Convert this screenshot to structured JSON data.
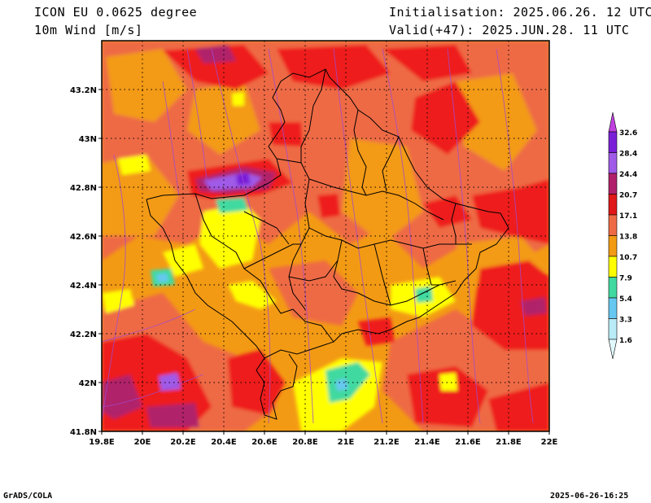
{
  "header": {
    "model": "ICON EU 0.0625 degree",
    "variable": "10m Wind [m/s]",
    "init": "Initialisation: 2025.06.26. 12 UTC",
    "valid": "Valid(+47): 2025.JUN.28. 11 UTC"
  },
  "axes": {
    "x_ticks": [
      "19.8E",
      "20E",
      "20.2E",
      "20.4E",
      "20.6E",
      "20.8E",
      "21E",
      "21.2E",
      "21.4E",
      "21.6E",
      "21.8E",
      "22E"
    ],
    "y_ticks": [
      "43.2N",
      "43N",
      "42.8N",
      "42.6N",
      "42.4N",
      "42.2N",
      "42N",
      "41.8N"
    ],
    "lon_range": [
      19.8,
      22.0
    ],
    "lat_range": [
      41.8,
      43.4
    ]
  },
  "legend": {
    "labels": [
      "32.6",
      "28.4",
      "24.4",
      "20.7",
      "17.1",
      "13.8",
      "10.7",
      "7.9",
      "5.4",
      "3.3",
      "1.6"
    ],
    "colors": [
      "#7a1fd8",
      "#a05ae8",
      "#b0206a",
      "#e01818",
      "#ee6a45",
      "#f39a14",
      "#ffff00",
      "#40d9a0",
      "#66c8f0",
      "#b9ecf6",
      "#e0f8fc"
    ]
  },
  "field_colors": {
    "orange": "#f39a14",
    "salmon": "#ee6a45",
    "red": "#ee1c1c",
    "crimson": "#b0206a",
    "violet": "#a05ae8",
    "purple": "#7a1fd8",
    "yellow": "#ffff00",
    "teal": "#40d9a0",
    "lightblue": "#66c8f0"
  },
  "footer": {
    "left": "GrADS/COLA",
    "right": "2025-06-26-16:25"
  }
}
